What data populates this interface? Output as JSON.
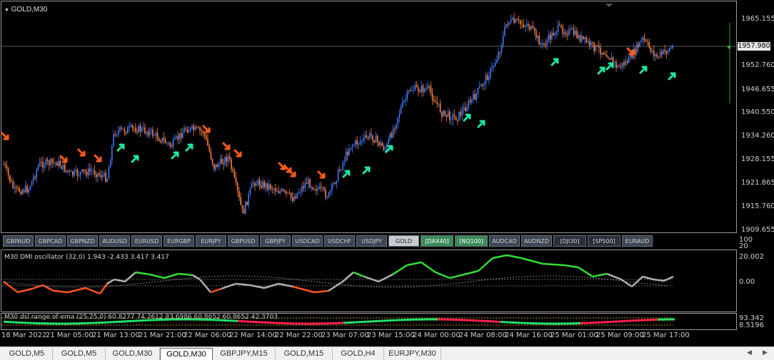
{
  "chart": {
    "title": "GOLD,M30",
    "current_price": "1957.980",
    "price_axis": [
      "1965.155",
      "1958.620",
      "1952.760",
      "1946.655",
      "1940.550",
      "1934.260",
      "1928.155",
      "1921.865",
      "1915.760",
      "1909.655"
    ],
    "time_axis": [
      "18 Mar 2022",
      "21 Mar 05:00",
      "21 Mar 13:00",
      "21 Mar 21:00",
      "22 Mar 06:00",
      "22 Mar 14:00",
      "22 Mar 22:00",
      "23 Mar 07:00",
      "23 Mar 15:00",
      "24 Mar 00:00",
      "24 Mar 08:00",
      "24 Mar 16:00",
      "25 Mar 01:00",
      "25 Mar 09:00",
      "25 Mar 17:00"
    ],
    "up_color": "#3d7cff",
    "down_color": "#ff8040",
    "buy_arrow_color": "#20e8a0",
    "sell_arrow_color": "#ff5a1a"
  },
  "symbols": [
    {
      "label": "GBPAUD",
      "style": "normal"
    },
    {
      "label": "GBPCAD",
      "style": "normal"
    },
    {
      "label": "GBPNZD",
      "style": "normal"
    },
    {
      "label": "AUDUSD",
      "style": "normal"
    },
    {
      "label": "EURUSD",
      "style": "normal"
    },
    {
      "label": "EURGBP",
      "style": "normal"
    },
    {
      "label": "EURJPY",
      "style": "normal"
    },
    {
      "label": "GBPUSD",
      "style": "normal"
    },
    {
      "label": "GBPJPY",
      "style": "normal"
    },
    {
      "label": "USDCAD",
      "style": "normal"
    },
    {
      "label": "USDCHF",
      "style": "normal"
    },
    {
      "label": "USDJPY",
      "style": "normal"
    },
    {
      "label": "GOLD",
      "style": "active"
    },
    {
      "label": "[DAX40]",
      "style": "green"
    },
    {
      "label": "[NQ100]",
      "style": "green"
    },
    {
      "label": "AUDCAD",
      "style": "normal"
    },
    {
      "label": "AUDNZD",
      "style": "normal"
    },
    {
      "label": "[DJI30]",
      "style": "dark"
    },
    {
      "label": "[SP500]",
      "style": "dark"
    },
    {
      "label": "EURAUD",
      "style": "normal"
    }
  ],
  "dmi": {
    "title": "M30 DMI oscillator (32,0) 1.943 -2.433 3.417 3.417",
    "axis": [
      "20",
      "20.002",
      "0.00"
    ]
  },
  "dsl": {
    "title": "M30 dsl range of ema (25,25,0) 60.8277 74.2612 83.6986 60.8652 60.8652 42.3703",
    "axis": [
      "100",
      "93.342",
      "8.5196"
    ]
  },
  "tabs": [
    "GOLD,M5",
    "GOLD,M5",
    "GOLD,M30",
    "GOLD,M30",
    "GBPJPY,M15",
    "GOLD,M15",
    "GOLD,H4",
    "EURJPY,M30"
  ],
  "active_tab": 3
}
